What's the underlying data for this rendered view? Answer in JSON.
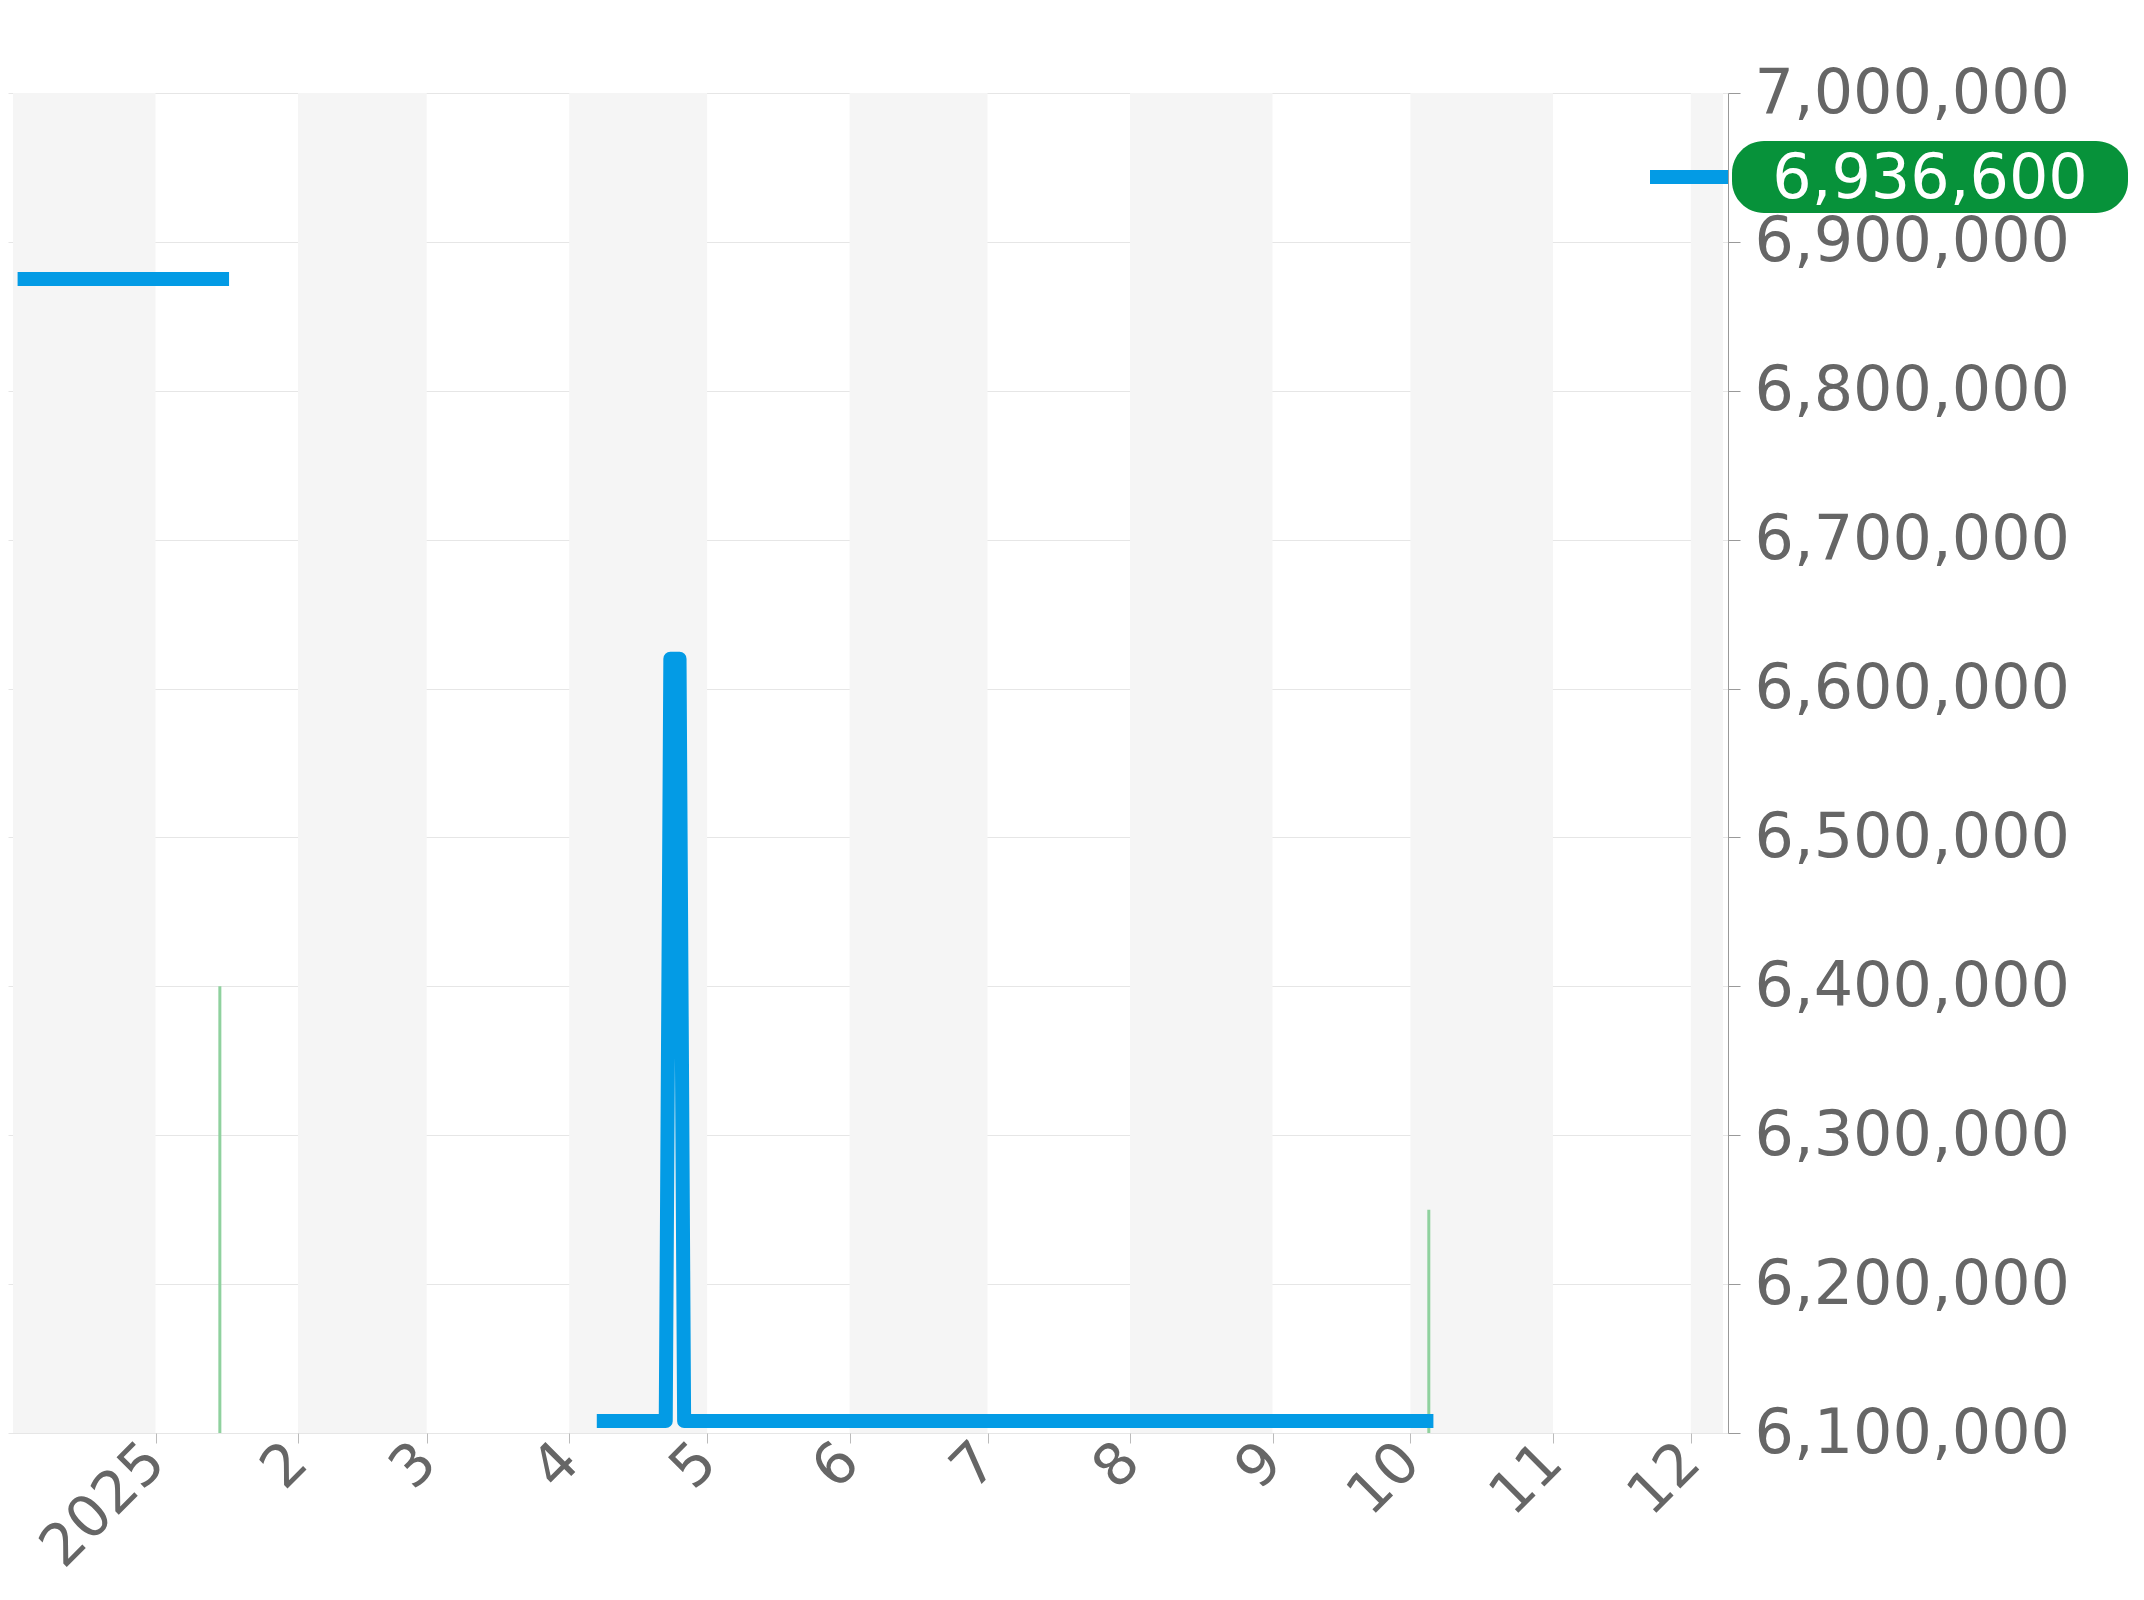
{
  "chart_data": {
    "type": "line",
    "series": [
      {
        "color": "#039be5",
        "x": [
          "2024-12-02",
          "2025-01-17",
          "2025-03-01",
          "2025-04-07",
          "2025-04-22",
          "2025-04-23",
          "2025-04-25",
          "2025-04-26",
          "2025-10-06"
        ],
        "values": [
          6875000,
          6875000,
          null,
          6108000,
          6108000,
          6620000,
          6620000,
          6108000,
          6108000
        ]
      },
      {
        "type": "bar",
        "color": "#8fd19e",
        "x": [
          "2025-01-15",
          "2025-10-05"
        ],
        "values": [
          6400000,
          6250000
        ]
      }
    ],
    "xlim": [
      "2024-12-01",
      "2025-12-08"
    ],
    "xticks": [
      {
        "value": "2025-01-01",
        "label": "2025"
      },
      {
        "value": "2025-02-01",
        "label": "2"
      },
      {
        "value": "2025-03-01",
        "label": "3"
      },
      {
        "value": "2025-04-01",
        "label": "4"
      },
      {
        "value": "2025-05-01",
        "label": "5"
      },
      {
        "value": "2025-06-01",
        "label": "6"
      },
      {
        "value": "2025-07-01",
        "label": "7"
      },
      {
        "value": "2025-08-01",
        "label": "8"
      },
      {
        "value": "2025-09-01",
        "label": "9"
      },
      {
        "value": "2025-10-01",
        "label": "10"
      },
      {
        "value": "2025-11-01",
        "label": "11"
      },
      {
        "value": "2025-12-01",
        "label": "12"
      }
    ],
    "ylim": [
      6100000,
      7000000
    ],
    "yticks": [
      {
        "value": 6100000,
        "label": "6,100,000"
      },
      {
        "value": 6200000,
        "label": "6,200,000"
      },
      {
        "value": 6300000,
        "label": "6,300,000"
      },
      {
        "value": 6400000,
        "label": "6,400,000"
      },
      {
        "value": 6500000,
        "label": "6,500,000"
      },
      {
        "value": 6600000,
        "label": "6,600,000"
      },
      {
        "value": 6700000,
        "label": "6,700,000"
      },
      {
        "value": 6800000,
        "label": "6,800,000"
      },
      {
        "value": 6900000,
        "label": "6,900,000"
      },
      {
        "value": 7000000,
        "label": "7,000,000"
      }
    ],
    "bands": [
      {
        "axis": "x",
        "from": "2024-12-01",
        "to": "2025-01-01",
        "color": "#f5f5f5"
      },
      {
        "axis": "x",
        "from": "2025-02-01",
        "to": "2025-03-01",
        "color": "#f5f5f5"
      },
      {
        "axis": "x",
        "from": "2025-04-01",
        "to": "2025-05-01",
        "color": "#f5f5f5"
      },
      {
        "axis": "x",
        "from": "2025-06-01",
        "to": "2025-07-01",
        "color": "#f5f5f5"
      },
      {
        "axis": "x",
        "from": "2025-08-01",
        "to": "2025-09-01",
        "color": "#f5f5f5"
      },
      {
        "axis": "x",
        "from": "2025-10-01",
        "to": "2025-11-01",
        "color": "#f5f5f5"
      },
      {
        "axis": "x",
        "from": "2025-12-01",
        "to": "2025-12-08",
        "color": "#f5f5f5"
      }
    ],
    "annotations": [
      "6,936,600"
    ],
    "grid": "y"
  }
}
